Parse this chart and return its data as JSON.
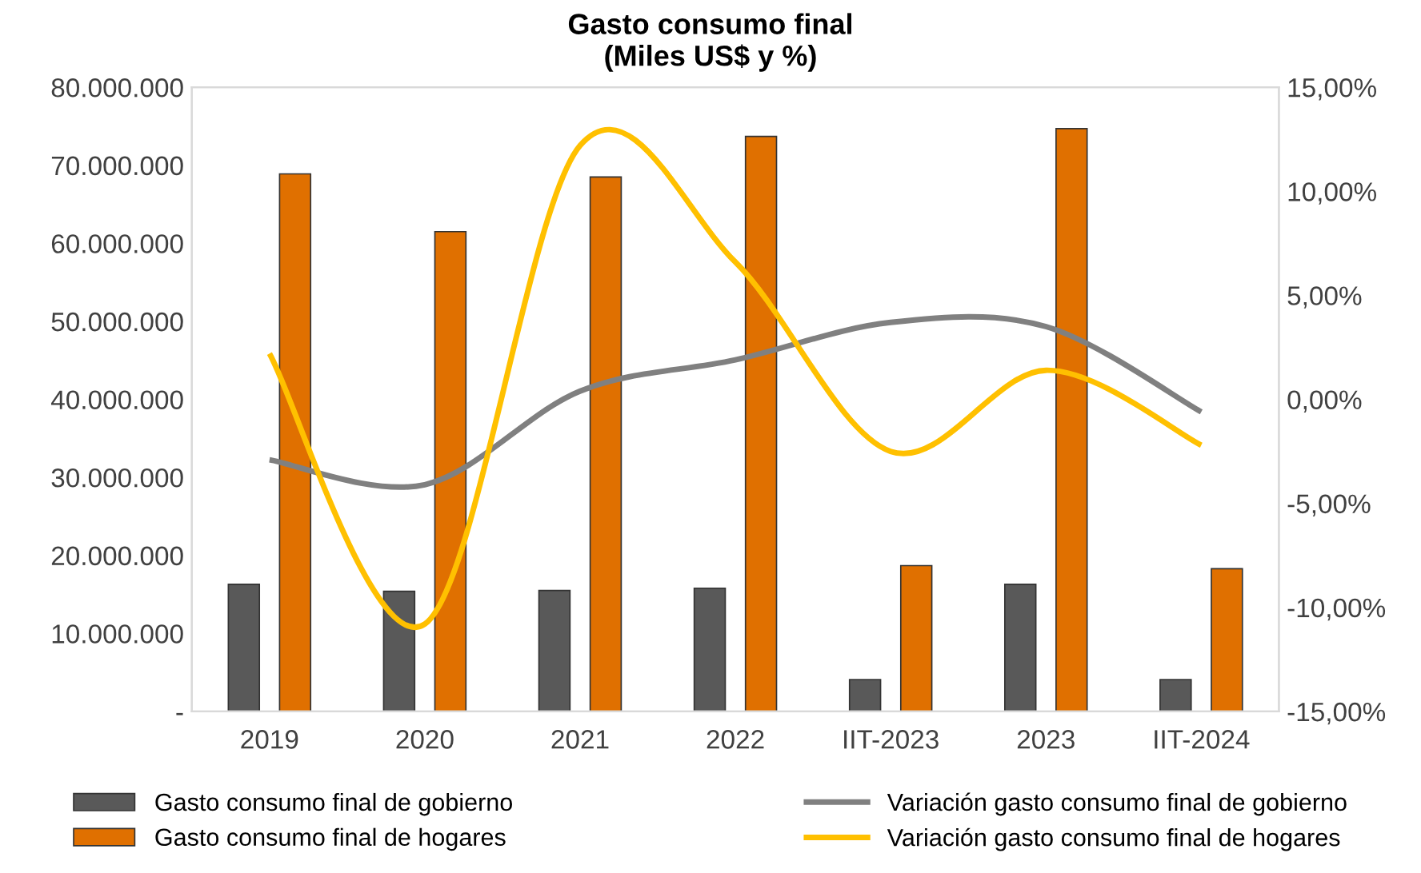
{
  "chart_data": {
    "type": "bar",
    "title": "Gasto consumo final\n(Miles US$ y %)",
    "categories": [
      "2019",
      "2020",
      "2021",
      "2022",
      "IIT-2023",
      "2023",
      "IIT-2024"
    ],
    "series": [
      {
        "name": "Gasto consumo final de gobierno",
        "color": "#595959",
        "values": [
          16300000,
          15400000,
          15500000,
          15800000,
          4100000,
          16300000,
          4100000
        ]
      },
      {
        "name": "Gasto consumo final de hogares",
        "color": "#e07000",
        "values": [
          68900000,
          61500000,
          68500000,
          73700000,
          18700000,
          74700000,
          18300000
        ]
      },
      {
        "name": "Variación gasto consumo final de gobierno",
        "type": "line",
        "axis": "y2",
        "color": "#808080",
        "values": [
          -2.9,
          -4.1,
          0.4,
          1.9,
          3.7,
          3.5,
          -0.6
        ]
      },
      {
        "name": "Variación gasto consumo final de hogares",
        "type": "line",
        "axis": "y2",
        "color": "#ffc000",
        "values": [
          2.2,
          -10.8,
          12.2,
          6.6,
          -2.5,
          1.4,
          -2.2
        ]
      }
    ],
    "ylim": [
      0,
      80000000
    ],
    "yticks": [
      {
        "value": 0,
        "label": "-"
      },
      {
        "value": 10000000,
        "label": "10.000.000"
      },
      {
        "value": 20000000,
        "label": "20.000.000"
      },
      {
        "value": 30000000,
        "label": "30.000.000"
      },
      {
        "value": 40000000,
        "label": "40.000.000"
      },
      {
        "value": 50000000,
        "label": "50.000.000"
      },
      {
        "value": 60000000,
        "label": "60.000.000"
      },
      {
        "value": 70000000,
        "label": "70.000.000"
      },
      {
        "value": 80000000,
        "label": "80.000.000"
      }
    ],
    "y2lim": [
      -15,
      15
    ],
    "y2ticks": [
      {
        "value": -15,
        "label": "-15,00%"
      },
      {
        "value": -10,
        "label": "-10,00%"
      },
      {
        "value": -5,
        "label": "-5,00%"
      },
      {
        "value": 0,
        "label": "0,00%"
      },
      {
        "value": 5,
        "label": "5,00%"
      },
      {
        "value": 10,
        "label": "10,00%"
      },
      {
        "value": 15,
        "label": "15,00%"
      }
    ],
    "legend": "bottom",
    "grid": false,
    "marker": "none",
    "line_style": "solid"
  }
}
